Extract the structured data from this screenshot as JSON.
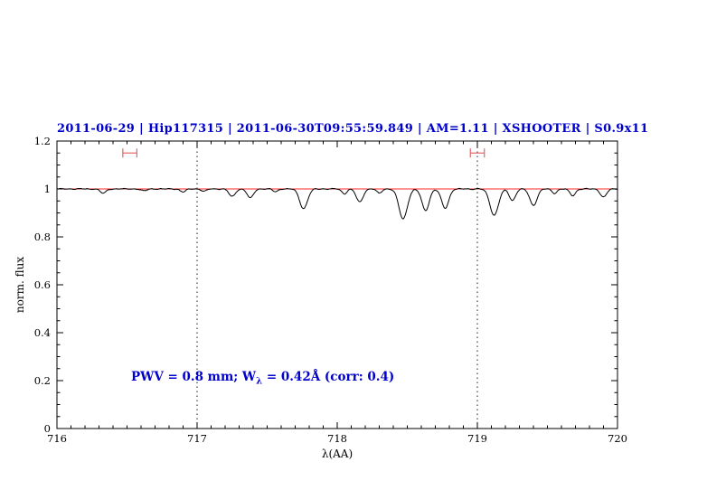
{
  "chart_data": {
    "type": "line",
    "title": "2011-06-29 | Hip117315 | 2011-06-30T09:55:59.849 | AM=1.11 | XSHOOTER | S0.9x11",
    "xlabel": "λ(AA)",
    "ylabel": "norm. flux",
    "xlim": [
      716,
      720
    ],
    "ylim": [
      0,
      1.2
    ],
    "x_ticks": [
      716,
      717,
      718,
      719,
      720
    ],
    "x_tick_labels": [
      "716",
      "717",
      "718",
      "719",
      "720"
    ],
    "y_ticks": [
      0,
      0.2,
      0.4,
      0.6,
      0.8,
      1,
      1.2
    ],
    "y_tick_labels": [
      "0",
      "0.2",
      "0.4",
      "0.6",
      "0.8",
      "1",
      "1.2"
    ],
    "continuum_level": 1.0,
    "vertical_dotted_lines": [
      717,
      719
    ],
    "feature_markers": [
      {
        "x_center": 716.52,
        "x_half_width": 0.05,
        "y": 1.15
      },
      {
        "x_center": 719.0,
        "x_half_width": 0.05,
        "y": 1.15
      }
    ],
    "absorption_lines": [
      {
        "center": 716.33,
        "depth": 0.018,
        "sigma": 0.02
      },
      {
        "center": 716.62,
        "depth": 0.008,
        "sigma": 0.02
      },
      {
        "center": 716.9,
        "depth": 0.012,
        "sigma": 0.02
      },
      {
        "center": 717.05,
        "depth": 0.01,
        "sigma": 0.018
      },
      {
        "center": 717.25,
        "depth": 0.032,
        "sigma": 0.022
      },
      {
        "center": 717.38,
        "depth": 0.038,
        "sigma": 0.022
      },
      {
        "center": 717.56,
        "depth": 0.012,
        "sigma": 0.018
      },
      {
        "center": 717.76,
        "depth": 0.082,
        "sigma": 0.028
      },
      {
        "center": 718.05,
        "depth": 0.02,
        "sigma": 0.018
      },
      {
        "center": 718.16,
        "depth": 0.055,
        "sigma": 0.024
      },
      {
        "center": 718.3,
        "depth": 0.018,
        "sigma": 0.018
      },
      {
        "center": 718.47,
        "depth": 0.125,
        "sigma": 0.03
      },
      {
        "center": 718.63,
        "depth": 0.09,
        "sigma": 0.026
      },
      {
        "center": 718.77,
        "depth": 0.08,
        "sigma": 0.026
      },
      {
        "center": 719.12,
        "depth": 0.11,
        "sigma": 0.03
      },
      {
        "center": 719.25,
        "depth": 0.048,
        "sigma": 0.022
      },
      {
        "center": 719.4,
        "depth": 0.068,
        "sigma": 0.026
      },
      {
        "center": 719.55,
        "depth": 0.018,
        "sigma": 0.018
      },
      {
        "center": 719.68,
        "depth": 0.028,
        "sigma": 0.02
      },
      {
        "center": 719.9,
        "depth": 0.034,
        "sigma": 0.022
      }
    ],
    "annotation": "PWV = 0.8 mm; W_λ = 0.42Å (corr: 0.4)",
    "annotation_parts": {
      "part1": "PWV = 0.8 mm; W",
      "sub": "λ",
      "part2": " = 0.42Å (corr: 0.4)"
    },
    "legend": "none",
    "grid": "off",
    "colors": {
      "title": "#0000cc",
      "annotation": "#0000cc",
      "spectrum": "#000000",
      "continuum": "#ff2a2a",
      "marker": "#e06666",
      "axis": "#000000"
    }
  }
}
